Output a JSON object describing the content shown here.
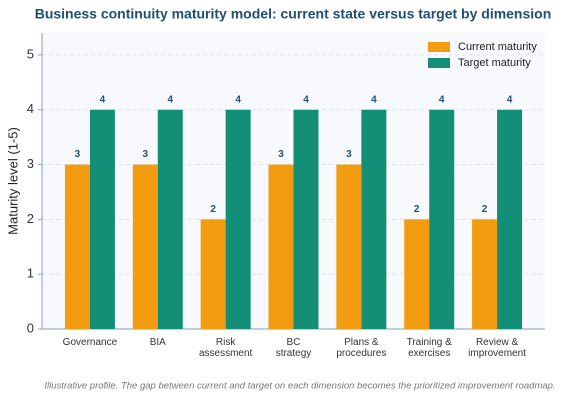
{
  "chart_data": {
    "type": "bar",
    "title": "Business continuity maturity model: current state versus target by dimension",
    "y_label": "Maturity level (1-5)",
    "categories": [
      "Governance",
      "BIA",
      "Risk\nassessment",
      "BC\nstrategy",
      "Plans &\nprocedures",
      "Training &\nexercises",
      "Review &\nimprovement"
    ],
    "series": [
      {
        "name": "Current maturity",
        "color": "#f39c12",
        "values": [
          3,
          3,
          2,
          3,
          3,
          2,
          2
        ]
      },
      {
        "name": "Target maturity",
        "color": "#148f77",
        "values": [
          4,
          4,
          4,
          4,
          4,
          4,
          4
        ]
      }
    ],
    "ylim": [
      0,
      5.4
    ],
    "yticks": [
      0,
      1,
      2,
      3,
      4,
      5
    ],
    "grid": true,
    "legend": "upper right",
    "footnote": "Illustrative profile. The gap between current and target on each dimension becomes the prioritized improvement roadmap."
  }
}
